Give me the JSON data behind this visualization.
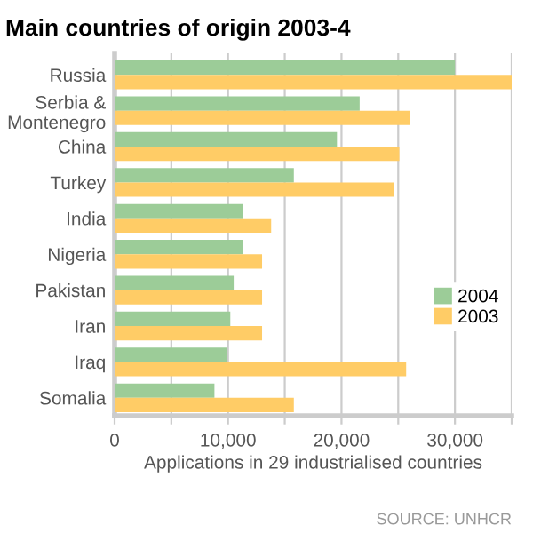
{
  "chart_data": {
    "type": "bar",
    "orientation": "horizontal",
    "title": "Main countries of origin 2003-4",
    "xlabel": "Applications in 29 industrialised countries",
    "categories": [
      "Russia",
      "Serbia &\nMontenegro",
      "China",
      "Turkey",
      "India",
      "Nigeria",
      "Pakistan",
      "Iran",
      "Iraq",
      "Somalia"
    ],
    "series": [
      {
        "name": "2004",
        "color": "#9ccc98",
        "values": [
          30000,
          21600,
          19600,
          15800,
          11300,
          11300,
          10500,
          10200,
          9900,
          8800
        ]
      },
      {
        "name": "2003",
        "color": "#ffcc66",
        "values": [
          35000,
          26000,
          25100,
          24600,
          13800,
          13000,
          13000,
          13000,
          25700,
          15800
        ]
      }
    ],
    "xlim": [
      0,
      35000
    ],
    "xticks": [
      0,
      {
        "value": 5000,
        "label": null
      },
      {
        "value": 10000,
        "label": "10,000"
      },
      {
        "value": 15000,
        "label": null
      },
      {
        "value": 20000,
        "label": "20,000"
      },
      {
        "value": 25000,
        "label": null
      },
      {
        "value": 30000,
        "label": "30,000"
      },
      {
        "value": 35000,
        "label": null
      }
    ],
    "grid": "x",
    "legend": "right",
    "annotations": [
      "SOURCE: UNHCR"
    ]
  }
}
